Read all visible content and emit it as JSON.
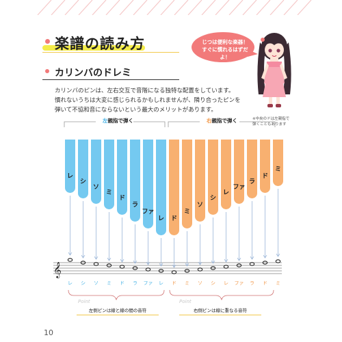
{
  "page": {
    "title": "楽譜の読み方",
    "subtitle": "カリンバのドレミ",
    "body_lines": [
      "カリンバのピンは、左右交互で音階になる独特な配置をしています。",
      "慣れないうちは大変に感じられるかもしれませんが、隣り合ったピンを",
      "弾いて不協和音にならないという最大のメリットがあります。"
    ],
    "speech_bubble": [
      "じつは便利な楽器！",
      "すぐに慣れるはずだよ！"
    ],
    "left_hand": {
      "colored": "左",
      "rest": "親指で弾く"
    },
    "right_hand": {
      "colored": "右",
      "rest": "親指で弾く"
    },
    "note": [
      "※中央のドは左親指で",
      "弾くこともあります"
    ],
    "keys": [
      "レ",
      "シ",
      "ソ",
      "ミ",
      "ド",
      "ラ",
      "ファ",
      "レ",
      "ド",
      "ミ",
      "ソ",
      "シ",
      "レ",
      "ファ",
      "ラ",
      "ド",
      "ミ"
    ],
    "notes_row": [
      "レ",
      "シ",
      "ソ",
      "ミ",
      "ド",
      "ラ",
      "ファ",
      "レ",
      "ド",
      "ミ",
      "ソ",
      "シ",
      "レ",
      "ファ",
      "ラ",
      "ド",
      "ミ"
    ],
    "point_left": {
      "label": "Point",
      "text": "左側ピンは線と線の間の音符"
    },
    "right_point": {
      "label": "Point",
      "text": "右側ピンは線に重なる音符"
    },
    "page_number": "10",
    "colors": {
      "blue": "#74c9f0",
      "orange": "#f8b070",
      "blue_text": "#4ab4e6",
      "orange_text": "#f29a4c",
      "pink": "#f27a7a",
      "yellow": "#f4ec4a"
    }
  }
}
